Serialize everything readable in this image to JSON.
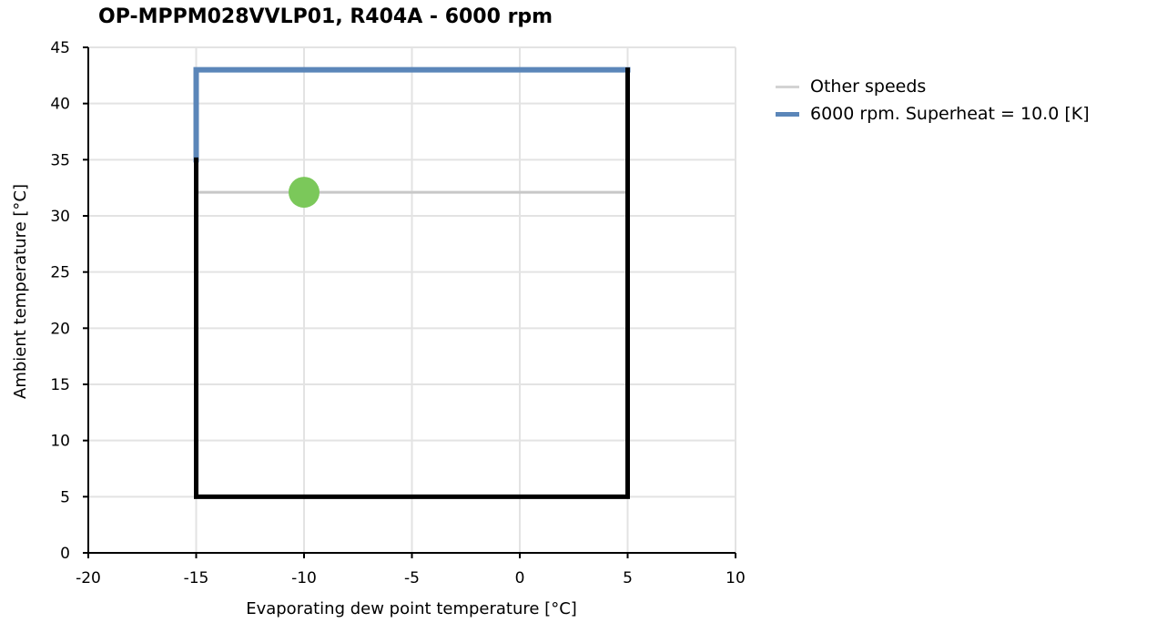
{
  "chart_data": {
    "type": "line",
    "title": "OP-MPPM028VVLP01, R404A - 6000 rpm",
    "xlabel": "Evaporating dew point temperature [°C]",
    "ylabel": "Ambient temperature [°C]",
    "xlim": [
      -20,
      10
    ],
    "ylim": [
      0,
      45
    ],
    "xticks": [
      -20,
      -15,
      -10,
      -5,
      0,
      5,
      10
    ],
    "yticks": [
      0,
      5,
      10,
      15,
      20,
      25,
      30,
      35,
      40,
      45
    ],
    "grid": true,
    "legend_position": "right",
    "series": [
      {
        "name": "Other speeds",
        "color": "#c8c8c8",
        "points": [
          [
            -15,
            32.1
          ],
          [
            5,
            32.1
          ]
        ]
      },
      {
        "name": "6000 rpm. Superheat = 10.0 [K]",
        "color": "#5b86b9",
        "points": [
          [
            -15,
            35
          ],
          [
            -15,
            43
          ],
          [
            5,
            43
          ]
        ]
      },
      {
        "color": "#000000",
        "points": [
          [
            -15,
            35
          ],
          [
            -15,
            5
          ],
          [
            5,
            5
          ],
          [
            5,
            43
          ]
        ]
      },
      {
        "type": "marker",
        "color": "#7bc85a",
        "points": [
          [
            -10,
            32.1
          ]
        ]
      }
    ]
  }
}
